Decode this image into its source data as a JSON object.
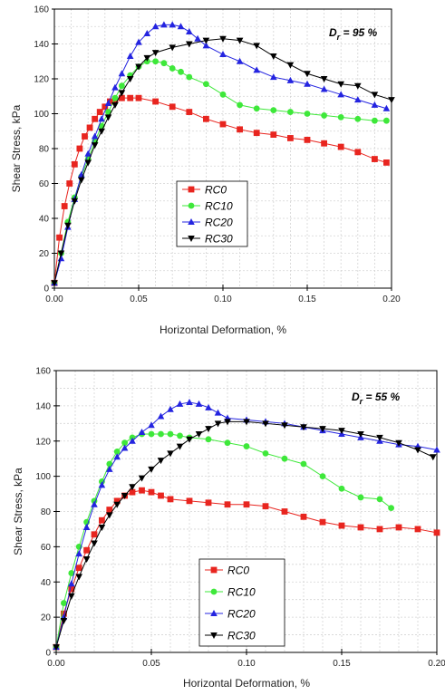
{
  "chart_data": [
    {
      "type": "scatter",
      "annotation": {
        "prefix": "D",
        "subscript": "r",
        "suffix": " = 95 %"
      },
      "xlabel": "Horizontal Deformation, %",
      "ylabel": "Shear Stress, kPa",
      "xlim": [
        0.0,
        0.2
      ],
      "ylim": [
        0,
        160
      ],
      "xticks": [
        "0.00",
        "0.05",
        "0.10",
        "0.15",
        "0.20"
      ],
      "yticks": [
        "0",
        "20",
        "40",
        "60",
        "80",
        "100",
        "120",
        "140",
        "160"
      ],
      "legend_position": "lower-center",
      "series": [
        {
          "name": "RC0",
          "color": "#e8251f",
          "marker": "square",
          "x": [
            0,
            0.003,
            0.006,
            0.009,
            0.012,
            0.015,
            0.018,
            0.021,
            0.024,
            0.027,
            0.03,
            0.033,
            0.036,
            0.04,
            0.045,
            0.05,
            0.06,
            0.07,
            0.08,
            0.09,
            0.1,
            0.11,
            0.12,
            0.13,
            0.14,
            0.15,
            0.16,
            0.17,
            0.18,
            0.19,
            0.197
          ],
          "y": [
            3,
            29,
            47,
            60,
            71,
            80,
            87,
            92,
            97,
            101,
            104,
            107,
            108,
            109,
            109,
            109,
            107,
            104,
            101,
            97,
            94,
            91,
            89,
            88,
            86,
            85,
            83,
            81,
            78,
            74,
            72
          ]
        },
        {
          "name": "RC10",
          "color": "#3ee83a",
          "marker": "circle",
          "x": [
            0,
            0.004,
            0.008,
            0.012,
            0.016,
            0.02,
            0.024,
            0.028,
            0.032,
            0.036,
            0.04,
            0.045,
            0.05,
            0.055,
            0.06,
            0.065,
            0.07,
            0.075,
            0.08,
            0.09,
            0.1,
            0.11,
            0.12,
            0.13,
            0.14,
            0.15,
            0.16,
            0.17,
            0.18,
            0.19,
            0.197
          ],
          "y": [
            3,
            20,
            38,
            52,
            64,
            74,
            84,
            93,
            101,
            109,
            116,
            122,
            127,
            130,
            130,
            129,
            126,
            124,
            121,
            117,
            111,
            105,
            103,
            102,
            101,
            100,
            99,
            98,
            97,
            96,
            96
          ]
        },
        {
          "name": "RC20",
          "color": "#2424e0",
          "marker": "triangle-up",
          "x": [
            0,
            0.004,
            0.008,
            0.012,
            0.016,
            0.02,
            0.024,
            0.028,
            0.032,
            0.036,
            0.04,
            0.045,
            0.05,
            0.055,
            0.06,
            0.065,
            0.07,
            0.075,
            0.08,
            0.085,
            0.09,
            0.1,
            0.11,
            0.12,
            0.13,
            0.14,
            0.15,
            0.16,
            0.17,
            0.18,
            0.19,
            0.197
          ],
          "y": [
            3,
            17,
            35,
            51,
            65,
            77,
            87,
            97,
            106,
            115,
            123,
            133,
            141,
            146,
            150,
            151,
            151,
            150,
            147,
            143,
            139,
            134,
            130,
            125,
            121,
            119,
            117,
            114,
            111,
            108,
            105,
            103
          ]
        },
        {
          "name": "RC30",
          "color": "#000000",
          "marker": "triangle-down",
          "x": [
            0,
            0.004,
            0.008,
            0.012,
            0.016,
            0.02,
            0.024,
            0.028,
            0.032,
            0.036,
            0.04,
            0.045,
            0.05,
            0.055,
            0.06,
            0.07,
            0.08,
            0.09,
            0.1,
            0.11,
            0.12,
            0.13,
            0.14,
            0.15,
            0.16,
            0.17,
            0.18,
            0.19,
            0.2
          ],
          "y": [
            3,
            20,
            36,
            50,
            62,
            72,
            82,
            90,
            98,
            105,
            112,
            120,
            127,
            132,
            135,
            138,
            140,
            142,
            143,
            142,
            139,
            133,
            128,
            123,
            120,
            117,
            116,
            111,
            108
          ]
        }
      ]
    },
    {
      "type": "scatter",
      "annotation": {
        "prefix": "D",
        "subscript": "r",
        "suffix": " = 55 %"
      },
      "xlabel": "Horizontal Deformation, %",
      "ylabel": "Shear Stress, kPa",
      "xlim": [
        0.0,
        0.2
      ],
      "ylim": [
        0,
        160
      ],
      "xticks": [
        "0.00",
        "0.05",
        "0.10",
        "0.15",
        "0.20"
      ],
      "yticks": [
        "0",
        "20",
        "40",
        "60",
        "80",
        "100",
        "120",
        "140",
        "160"
      ],
      "legend_position": "lower-center",
      "series": [
        {
          "name": "RC0",
          "color": "#e8251f",
          "marker": "square",
          "x": [
            0,
            0.004,
            0.008,
            0.012,
            0.016,
            0.02,
            0.024,
            0.028,
            0.032,
            0.036,
            0.04,
            0.045,
            0.05,
            0.055,
            0.06,
            0.07,
            0.08,
            0.09,
            0.1,
            0.11,
            0.12,
            0.13,
            0.14,
            0.15,
            0.16,
            0.17,
            0.18,
            0.19,
            0.2
          ],
          "y": [
            3,
            22,
            36,
            48,
            58,
            67,
            75,
            81,
            86,
            89,
            91,
            92,
            91,
            89,
            87,
            86,
            85,
            84,
            84,
            83,
            80,
            77,
            74,
            72,
            71,
            70,
            71,
            70,
            68
          ]
        },
        {
          "name": "RC10",
          "color": "#3ee83a",
          "marker": "circle",
          "x": [
            0,
            0.004,
            0.008,
            0.012,
            0.016,
            0.02,
            0.024,
            0.028,
            0.032,
            0.036,
            0.04,
            0.045,
            0.05,
            0.055,
            0.06,
            0.065,
            0.07,
            0.08,
            0.09,
            0.1,
            0.11,
            0.12,
            0.13,
            0.14,
            0.15,
            0.16,
            0.17,
            0.176
          ],
          "y": [
            3,
            28,
            45,
            60,
            74,
            86,
            97,
            107,
            114,
            119,
            122,
            124,
            124,
            124,
            124,
            123,
            122,
            121,
            119,
            117,
            113,
            110,
            107,
            100,
            93,
            88,
            87,
            82
          ]
        },
        {
          "name": "RC20",
          "color": "#2424e0",
          "marker": "triangle-up",
          "x": [
            0,
            0.004,
            0.008,
            0.012,
            0.016,
            0.02,
            0.024,
            0.028,
            0.032,
            0.036,
            0.04,
            0.045,
            0.05,
            0.055,
            0.06,
            0.065,
            0.07,
            0.075,
            0.08,
            0.085,
            0.09,
            0.1,
            0.11,
            0.12,
            0.13,
            0.14,
            0.15,
            0.16,
            0.17,
            0.18,
            0.19,
            0.2
          ],
          "y": [
            3,
            20,
            39,
            56,
            71,
            84,
            95,
            104,
            111,
            116,
            120,
            125,
            129,
            134,
            138,
            141,
            142,
            141,
            139,
            136,
            133,
            132,
            131,
            130,
            128,
            126,
            124,
            122,
            120,
            118,
            117,
            115
          ]
        },
        {
          "name": "RC30",
          "color": "#000000",
          "marker": "triangle-down",
          "x": [
            0,
            0.004,
            0.008,
            0.012,
            0.016,
            0.02,
            0.024,
            0.028,
            0.032,
            0.036,
            0.04,
            0.045,
            0.05,
            0.055,
            0.06,
            0.065,
            0.07,
            0.075,
            0.08,
            0.085,
            0.09,
            0.1,
            0.11,
            0.12,
            0.13,
            0.14,
            0.15,
            0.16,
            0.17,
            0.18,
            0.19,
            0.198
          ],
          "y": [
            3,
            18,
            32,
            43,
            53,
            62,
            71,
            78,
            84,
            89,
            94,
            99,
            104,
            109,
            113,
            117,
            121,
            124,
            127,
            130,
            131,
            131,
            130,
            129,
            128,
            127,
            126,
            124,
            122,
            119,
            115,
            111
          ]
        }
      ]
    }
  ]
}
